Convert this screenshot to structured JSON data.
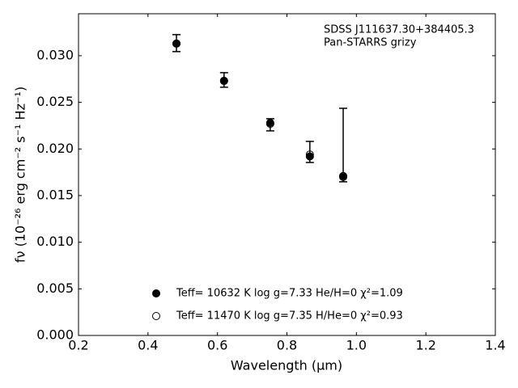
{
  "chart_data": {
    "type": "scatter",
    "annotations": [
      "SDSS J111637.30+384405.3",
      "Pan-STARRS grizy"
    ],
    "x_label": "Wavelength (μm)",
    "y_label": "fν (10⁻²⁶ erg cm⁻² s⁻¹ Hz⁻¹)",
    "xlim": [
      0.2,
      1.4
    ],
    "xticks": [
      0.2,
      0.4,
      0.6,
      0.8,
      {
        "value": 1,
        "label": "1.0"
      },
      1.2,
      1.4
    ],
    "ylim": [
      0,
      0.0345
    ],
    "yticks": [
      {
        "value": 0,
        "label": "0.000"
      },
      0.005,
      {
        "value": 0.01,
        "label": "0.010"
      },
      0.015,
      {
        "value": 0.02,
        "label": "0.020"
      },
      0.025,
      {
        "value": 0.03,
        "label": "0.030"
      }
    ],
    "observed": {
      "color": "#000000",
      "x": [
        0.482,
        0.619,
        0.752,
        0.866,
        0.962
      ],
      "values": [
        0.03135,
        0.0274,
        0.02259,
        0.01968,
        0.02042
      ],
      "errors": [
        0.00091,
        0.00078,
        0.00065,
        0.00113,
        0.00394
      ]
    },
    "series": [
      {
        "name": "Teff= 10632 K  log g=7.33  He/H=0  χ²=1.09",
        "marker": "filled",
        "color": "#000000",
        "x": [
          0.482,
          0.619,
          0.752,
          0.866,
          0.962
        ],
        "values": [
          0.0313,
          0.0273,
          0.0228,
          0.0192,
          0.0171
        ]
      },
      {
        "name": "Teff= 11470 K  log g=7.35  H/He=0  χ²=0.93",
        "marker": "open",
        "color": "#000000",
        "x": [
          0.482,
          0.619,
          0.752,
          0.866,
          0.962
        ],
        "values": [
          0.0313,
          0.0273,
          0.0227,
          0.0194,
          0.017
        ]
      }
    ],
    "legend": "lower center"
  }
}
